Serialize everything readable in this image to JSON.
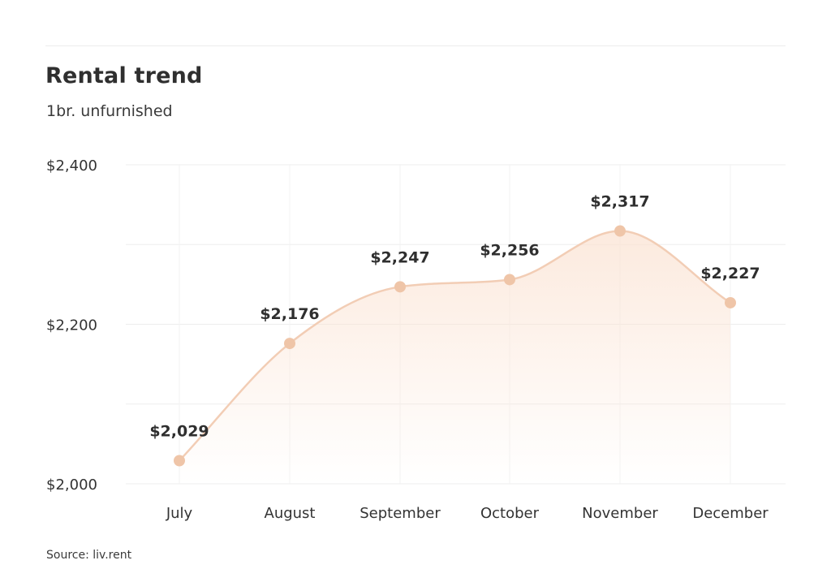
{
  "header": {
    "title": "Rental trend",
    "subtitle": "1br. unfurnished"
  },
  "footer": {
    "source": "Source: liv.rent"
  },
  "colors": {
    "line": "#f2cdb5",
    "marker": "#efc5a8",
    "area_top": "#fbe3d3",
    "grid": "#ededed"
  },
  "chart_data": {
    "type": "area",
    "categories": [
      "July",
      "August",
      "September",
      "October",
      "November",
      "December"
    ],
    "series": [
      {
        "values": [
          2029,
          2176,
          2247,
          2256,
          2317,
          2227
        ]
      }
    ],
    "data_labels": [
      "$2,029",
      "$2,176",
      "$2,247",
      "$2,256",
      "$2,317",
      "$2,227"
    ],
    "ylim": [
      2000,
      2400
    ],
    "y_ticks": [
      2000,
      2200,
      2400
    ],
    "y_tick_labels": [
      "$2,000",
      "$2,200",
      "$2,400"
    ],
    "grid": true,
    "smooth": true
  }
}
